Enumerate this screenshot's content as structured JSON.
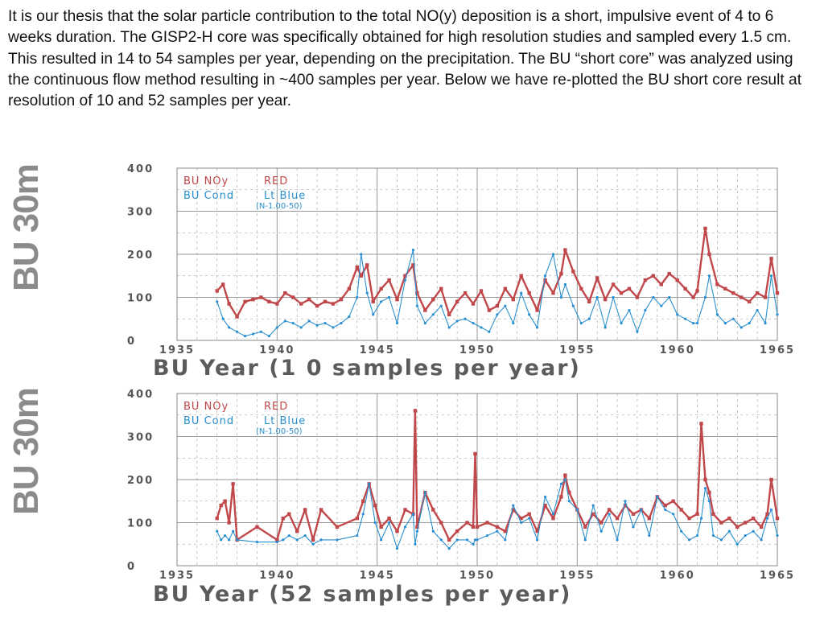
{
  "intro_text": "It is our thesis that the solar particle contribution to the total NO(y) deposition is a short, impulsive event of 4 to 6 weeks duration.  The GISP2-H core was specifically obtained for high resolution studies and sampled every 1.5 cm.  This resulted in 14 to 54 samples per year, depending on the precipitation.  The BU “short core” was analyzed using the continuous flow method resulting in ~400 samples per year.  Below we have re-plotted the BU short core result at resolution of 10 and 52 samples per year.",
  "colors": {
    "noy": "#c0474a",
    "cond": "#2a8fd0",
    "grid": "#9a9a9a",
    "axis_text": "#555555",
    "ylabel": "#8a8c8a"
  },
  "chart_data": [
    {
      "type": "line",
      "ylabel": "BU  30m",
      "xlabel": "BU  Year   (1 0 samples per year)",
      "xlim": [
        1935,
        1965
      ],
      "ylim": [
        0,
        400
      ],
      "xticks": [
        "1935",
        "1940",
        "1945",
        "1950",
        "1955",
        "1960",
        "1965"
      ],
      "yticks": [
        "0",
        "100",
        "200",
        "300",
        "400"
      ],
      "legend": {
        "row1": [
          "BU  NOy",
          "RED"
        ],
        "row2": [
          "BU  Cond",
          "Lt Blue"
        ],
        "note": "(N-1.00-50)"
      },
      "series": [
        {
          "name": "BU NOy",
          "color": "#c0474a",
          "x": [
            1937.0,
            1937.3,
            1937.6,
            1938.0,
            1938.4,
            1938.8,
            1939.2,
            1939.6,
            1940.0,
            1940.4,
            1940.8,
            1941.2,
            1941.6,
            1942.0,
            1942.4,
            1942.8,
            1943.2,
            1943.6,
            1944.0,
            1944.2,
            1944.5,
            1944.8,
            1945.2,
            1945.6,
            1946.0,
            1946.4,
            1946.8,
            1947.0,
            1947.4,
            1947.8,
            1948.2,
            1948.6,
            1949.0,
            1949.4,
            1949.8,
            1950.2,
            1950.6,
            1951.0,
            1951.4,
            1951.8,
            1952.2,
            1952.6,
            1953.0,
            1953.4,
            1953.8,
            1954.2,
            1954.4,
            1954.8,
            1955.2,
            1955.6,
            1956.0,
            1956.4,
            1956.8,
            1957.2,
            1957.6,
            1958.0,
            1958.4,
            1958.8,
            1959.2,
            1959.6,
            1960.0,
            1960.4,
            1960.8,
            1961.0,
            1961.4,
            1961.6,
            1962.0,
            1962.4,
            1962.8,
            1963.2,
            1963.6,
            1964.0,
            1964.4,
            1964.7,
            1965.0
          ],
          "y": [
            115,
            130,
            85,
            55,
            90,
            95,
            100,
            90,
            85,
            110,
            100,
            85,
            95,
            80,
            90,
            85,
            95,
            120,
            170,
            150,
            175,
            90,
            120,
            140,
            95,
            150,
            175,
            110,
            70,
            95,
            120,
            60,
            90,
            110,
            85,
            115,
            70,
            80,
            120,
            95,
            150,
            110,
            70,
            140,
            110,
            155,
            210,
            160,
            120,
            90,
            145,
            95,
            130,
            110,
            120,
            100,
            140,
            150,
            130,
            155,
            140,
            120,
            100,
            115,
            260,
            200,
            130,
            120,
            110,
            100,
            90,
            110,
            100,
            190,
            110
          ]
        },
        {
          "name": "BU Cond",
          "color": "#2a8fd0",
          "x": [
            1937.0,
            1937.3,
            1937.6,
            1938.0,
            1938.4,
            1938.8,
            1939.2,
            1939.6,
            1940.0,
            1940.4,
            1940.8,
            1941.2,
            1941.6,
            1942.0,
            1942.4,
            1942.8,
            1943.2,
            1943.6,
            1944.0,
            1944.2,
            1944.5,
            1944.8,
            1945.2,
            1945.6,
            1946.0,
            1946.4,
            1946.8,
            1947.0,
            1947.4,
            1947.8,
            1948.2,
            1948.6,
            1949.0,
            1949.4,
            1949.8,
            1950.2,
            1950.6,
            1951.0,
            1951.4,
            1951.8,
            1952.2,
            1952.6,
            1953.0,
            1953.4,
            1953.8,
            1954.2,
            1954.4,
            1954.8,
            1955.2,
            1955.6,
            1956.0,
            1956.4,
            1956.8,
            1957.2,
            1957.6,
            1958.0,
            1958.4,
            1958.8,
            1959.2,
            1959.6,
            1960.0,
            1960.4,
            1960.8,
            1961.0,
            1961.4,
            1961.6,
            1962.0,
            1962.4,
            1962.8,
            1963.2,
            1963.6,
            1964.0,
            1964.4,
            1964.7,
            1965.0
          ],
          "y": [
            90,
            50,
            30,
            20,
            10,
            15,
            20,
            10,
            30,
            45,
            40,
            30,
            45,
            35,
            40,
            30,
            40,
            55,
            100,
            200,
            110,
            60,
            90,
            100,
            40,
            140,
            210,
            80,
            40,
            60,
            80,
            30,
            45,
            50,
            40,
            30,
            20,
            60,
            80,
            40,
            110,
            60,
            30,
            150,
            200,
            100,
            130,
            80,
            40,
            50,
            100,
            30,
            100,
            40,
            70,
            20,
            70,
            100,
            80,
            100,
            60,
            50,
            40,
            40,
            100,
            150,
            60,
            40,
            50,
            30,
            40,
            70,
            40,
            150,
            60
          ]
        }
      ]
    },
    {
      "type": "line",
      "ylabel": "BU  30m",
      "xlabel": "BU  Year   (52 samples per year)",
      "xlim": [
        1935,
        1965
      ],
      "ylim": [
        0,
        400
      ],
      "xticks": [
        "1935",
        "1940",
        "1945",
        "1950",
        "1955",
        "1960",
        "1965"
      ],
      "yticks": [
        "0",
        "100",
        "200",
        "300",
        "400"
      ],
      "legend": {
        "row1": [
          "BU  NOy",
          "RED"
        ],
        "row2": [
          "BU  Cond",
          "Lt Blue"
        ],
        "note": "(N-1.00-50)"
      },
      "series": [
        {
          "name": "BU NOy",
          "color": "#c0474a",
          "x": [
            1937.0,
            1937.2,
            1937.4,
            1937.6,
            1937.8,
            1938.0,
            1939.0,
            1940.0,
            1940.3,
            1940.6,
            1941.0,
            1941.4,
            1941.8,
            1942.2,
            1943.0,
            1944.0,
            1944.3,
            1944.6,
            1944.9,
            1945.2,
            1945.6,
            1946.0,
            1946.4,
            1946.8,
            1946.9,
            1947.0,
            1947.4,
            1947.8,
            1948.2,
            1948.6,
            1949.0,
            1949.5,
            1949.8,
            1949.9,
            1950.0,
            1950.5,
            1951.0,
            1951.4,
            1951.8,
            1952.2,
            1952.6,
            1953.0,
            1953.4,
            1953.8,
            1954.2,
            1954.4,
            1954.6,
            1955.0,
            1955.4,
            1955.8,
            1956.2,
            1956.6,
            1957.0,
            1957.4,
            1957.8,
            1958.2,
            1958.6,
            1959.0,
            1959.4,
            1959.8,
            1960.2,
            1960.6,
            1961.0,
            1961.2,
            1961.4,
            1961.6,
            1961.8,
            1962.2,
            1962.6,
            1963.0,
            1963.4,
            1963.8,
            1964.2,
            1964.5,
            1964.7,
            1965.0
          ],
          "y": [
            110,
            140,
            150,
            100,
            190,
            60,
            90,
            60,
            110,
            120,
            80,
            130,
            60,
            130,
            90,
            110,
            150,
            190,
            140,
            90,
            110,
            80,
            130,
            120,
            360,
            90,
            170,
            130,
            100,
            60,
            80,
            100,
            90,
            260,
            90,
            100,
            90,
            80,
            130,
            110,
            120,
            80,
            140,
            110,
            160,
            210,
            170,
            130,
            90,
            120,
            100,
            130,
            110,
            140,
            120,
            130,
            110,
            160,
            140,
            150,
            130,
            110,
            120,
            330,
            200,
            170,
            120,
            100,
            110,
            90,
            100,
            110,
            90,
            120,
            200,
            110
          ]
        },
        {
          "name": "BU Cond",
          "color": "#2a8fd0",
          "x": [
            1937.0,
            1937.2,
            1937.4,
            1937.6,
            1937.8,
            1938.0,
            1939.0,
            1940.0,
            1940.3,
            1940.6,
            1941.0,
            1941.4,
            1941.8,
            1942.2,
            1943.0,
            1944.0,
            1944.3,
            1944.6,
            1944.9,
            1945.2,
            1945.6,
            1946.0,
            1946.4,
            1946.8,
            1946.9,
            1947.0,
            1947.4,
            1947.8,
            1948.2,
            1948.6,
            1949.0,
            1949.5,
            1949.8,
            1949.9,
            1950.0,
            1950.5,
            1951.0,
            1951.4,
            1951.8,
            1952.2,
            1952.6,
            1953.0,
            1953.4,
            1953.8,
            1954.2,
            1954.4,
            1954.6,
            1955.0,
            1955.4,
            1955.8,
            1956.2,
            1956.6,
            1957.0,
            1957.4,
            1957.8,
            1958.2,
            1958.6,
            1959.0,
            1959.4,
            1959.8,
            1960.2,
            1960.6,
            1961.0,
            1961.2,
            1961.4,
            1961.6,
            1961.8,
            1962.2,
            1962.6,
            1963.0,
            1963.4,
            1963.8,
            1964.2,
            1964.5,
            1964.7,
            1965.0
          ],
          "y": [
            80,
            60,
            70,
            60,
            80,
            60,
            55,
            55,
            60,
            70,
            60,
            70,
            50,
            60,
            60,
            70,
            120,
            190,
            100,
            60,
            100,
            40,
            90,
            120,
            50,
            80,
            170,
            80,
            60,
            40,
            60,
            60,
            50,
            60,
            60,
            70,
            80,
            60,
            140,
            100,
            110,
            60,
            160,
            120,
            190,
            200,
            150,
            130,
            60,
            140,
            80,
            120,
            60,
            150,
            90,
            130,
            70,
            160,
            130,
            120,
            80,
            60,
            70,
            110,
            180,
            150,
            70,
            60,
            80,
            50,
            70,
            80,
            60,
            110,
            130,
            70
          ]
        }
      ]
    }
  ]
}
